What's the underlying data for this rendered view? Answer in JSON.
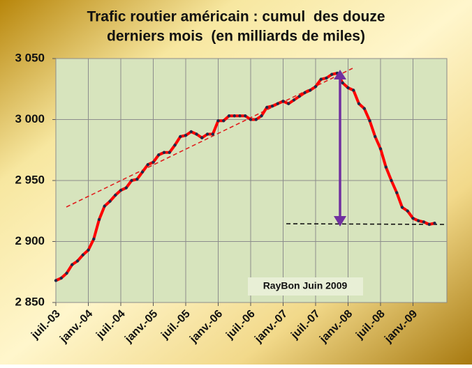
{
  "chart_data": {
    "type": "line",
    "title": [
      "Trafic routier américain : cumul  des douze",
      "derniers mois  (en milliards de miles)"
    ],
    "annotation": "RayBon Juin 2009",
    "categories": [
      "juil.-03",
      null,
      null,
      null,
      null,
      null,
      "janv.-04",
      null,
      null,
      null,
      null,
      null,
      "juil.-04",
      null,
      null,
      null,
      null,
      null,
      "janv.-05",
      null,
      null,
      null,
      null,
      null,
      "juil.-05",
      null,
      null,
      null,
      null,
      null,
      "janv.-06",
      null,
      null,
      null,
      null,
      null,
      "juil.-06",
      null,
      null,
      null,
      null,
      null,
      "janv.-07",
      null,
      null,
      null,
      null,
      null,
      "juil.-07",
      null,
      null,
      null,
      null,
      null,
      "janv.-08",
      null,
      null,
      null,
      null,
      null,
      "juil.-08",
      null,
      null,
      null,
      null,
      null,
      "janv.-09",
      null,
      null,
      null,
      null
    ],
    "series": [
      {
        "color": "#ff0000",
        "marker_color": "#1f2a4a",
        "values": [
          2868,
          2870,
          2874,
          2881,
          2884,
          2889,
          2893,
          2902,
          2918,
          2929,
          2933,
          2938,
          2942,
          2944,
          2950,
          2951,
          2957,
          2963,
          2965,
          2971,
          2973,
          2973,
          2979,
          2986,
          2987,
          2990,
          2988,
          2985,
          2988,
          2988,
          2999,
          2999,
          3003,
          3003,
          3003,
          3003,
          3000,
          3000,
          3003,
          3010,
          3011,
          3013,
          3015,
          3013,
          3016,
          3019,
          3022,
          3024,
          3027,
          3033,
          3034,
          3037,
          3038,
          3030,
          3026,
          3024,
          3013,
          3009,
          2999,
          2986,
          2976,
          2961,
          2950,
          2940,
          2928,
          2925,
          2919,
          2917,
          2916,
          2914,
          2915
        ]
      }
    ],
    "ylim": [
      2850,
      3050
    ],
    "yticks": [
      {
        "value": 2850,
        "label": "2 850"
      },
      {
        "value": 2900,
        "label": "2 900"
      },
      {
        "value": 2950,
        "label": "2 950"
      },
      {
        "value": 3000,
        "label": "3 000"
      },
      {
        "value": 3050,
        "label": "3 050"
      }
    ],
    "grid": true
  }
}
